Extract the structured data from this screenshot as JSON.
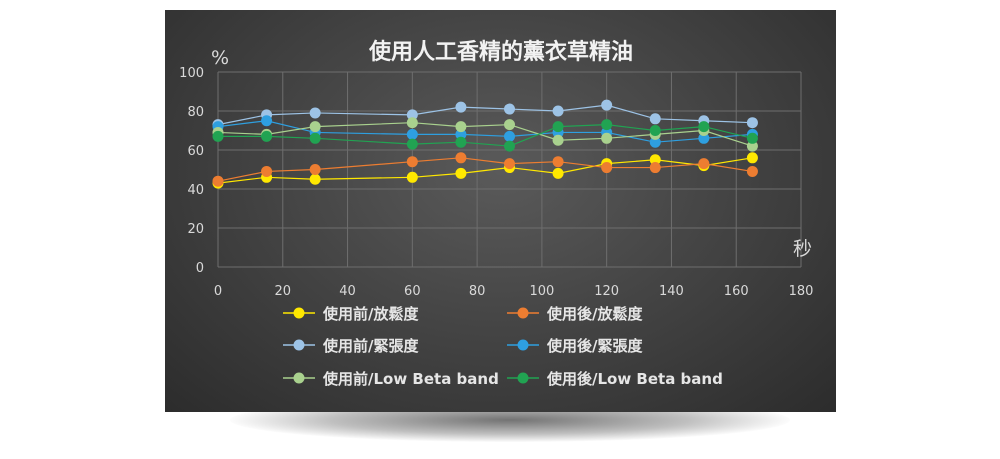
{
  "chart_data": {
    "type": "line",
    "title": "使用人工香精的薰衣草精油",
    "xlabel": "秒",
    "ylabel": "%",
    "xlim": [
      0,
      180
    ],
    "ylim": [
      0,
      100
    ],
    "xticks": [
      0,
      20,
      40,
      60,
      80,
      100,
      120,
      140,
      160,
      180
    ],
    "yticks": [
      0,
      20,
      40,
      60,
      80,
      100
    ],
    "grid": true,
    "legend_position": "bottom",
    "x": [
      0,
      15,
      30,
      60,
      75,
      90,
      105,
      120,
      135,
      150,
      165
    ],
    "series": [
      {
        "name": "使用前/放鬆度",
        "color": "#ffe800",
        "values": [
          43,
          46,
          45,
          46,
          48,
          51,
          48,
          53,
          55,
          52,
          56
        ]
      },
      {
        "name": "使用後/放鬆度",
        "color": "#ed7d31",
        "values": [
          44,
          49,
          50,
          54,
          56,
          53,
          54,
          51,
          51,
          53,
          49
        ]
      },
      {
        "name": "使用前/緊張度",
        "color": "#9dc3e6",
        "values": [
          73,
          78,
          79,
          78,
          82,
          81,
          80,
          83,
          76,
          75,
          74
        ]
      },
      {
        "name": "使用後/緊張度",
        "color": "#2e9fe0",
        "values": [
          72,
          75,
          69,
          68,
          68,
          67,
          69,
          69,
          64,
          66,
          68
        ]
      },
      {
        "name": "使用前/Low Beta band",
        "color": "#a9d18e",
        "values": [
          69,
          68,
          72,
          74,
          72,
          73,
          65,
          66,
          68,
          70,
          62
        ]
      },
      {
        "name": "使用後/Low Beta band",
        "color": "#21a352",
        "values": [
          67,
          67,
          66,
          63,
          64,
          62,
          72,
          73,
          70,
          72,
          66
        ]
      }
    ]
  }
}
